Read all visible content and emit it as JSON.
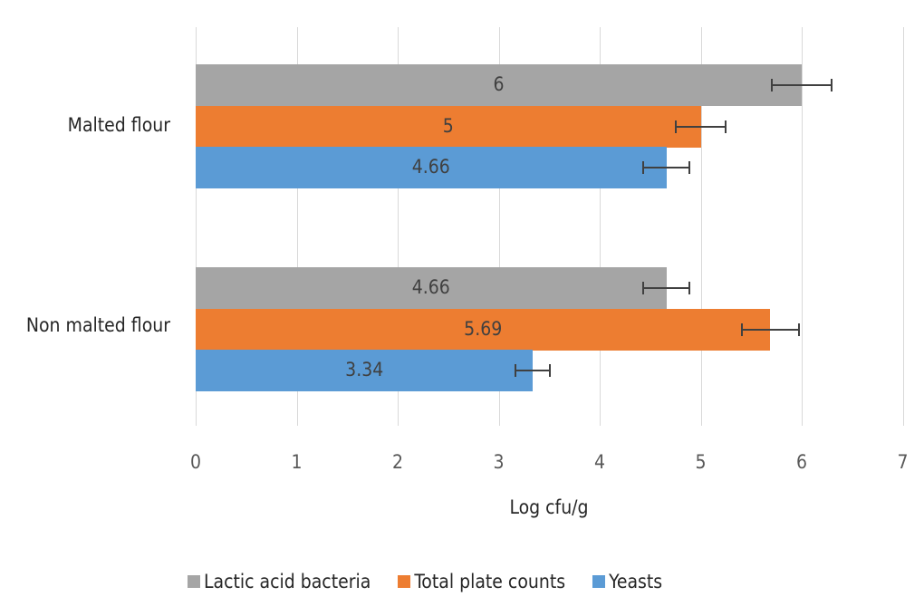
{
  "chart_data": {
    "type": "bar",
    "orientation": "horizontal",
    "title": "",
    "xlabel": "Log cfu/g",
    "ylabel": "",
    "xlim": [
      0,
      7
    ],
    "xticks": [
      "0",
      "1",
      "2",
      "3",
      "4",
      "5",
      "6",
      "7"
    ],
    "grid": true,
    "legend_position": "bottom",
    "categories": [
      "Malted flour",
      "Non malted flour"
    ],
    "series": [
      {
        "name": "Lactic acid bacteria",
        "color": "#a5a5a5",
        "values": [
          6,
          4.66
        ],
        "labels": [
          "6",
          "4.66"
        ],
        "errors": [
          0.3,
          0.23
        ]
      },
      {
        "name": "Total plate counts",
        "color": "#ed7d31",
        "values": [
          5,
          5.69
        ],
        "labels": [
          "5",
          "5.69"
        ],
        "errors": [
          0.25,
          0.28
        ]
      },
      {
        "name": "Yeasts",
        "color": "#5b9bd5",
        "values": [
          4.66,
          3.34
        ],
        "labels": [
          "4.66",
          "3.34"
        ],
        "errors": [
          0.23,
          0.17
        ]
      }
    ]
  }
}
